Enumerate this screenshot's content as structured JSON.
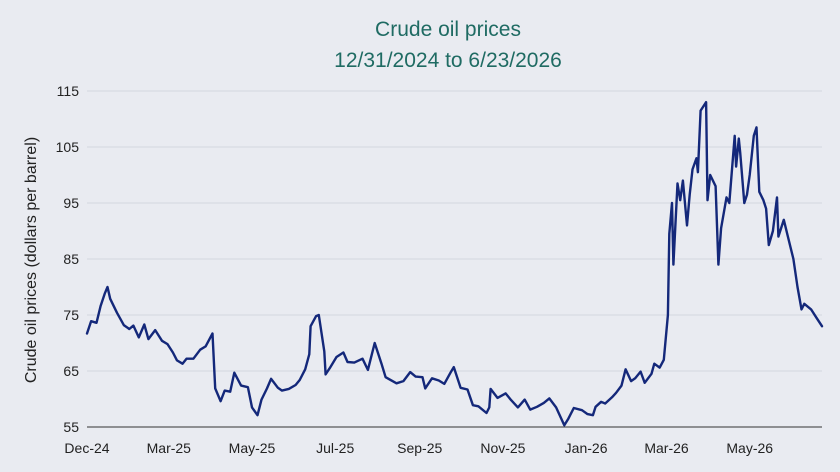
{
  "chart_data": {
    "type": "line",
    "title": "Crude oil prices",
    "subtitle": "12/31/2024 to 6/23/2026",
    "xlabel": "",
    "ylabel": "Crude oil prices (dollars per barrel)",
    "ylim": [
      55,
      115
    ],
    "yticks": [
      55,
      65,
      75,
      85,
      95,
      105,
      115
    ],
    "xlim": [
      "2024-12-31",
      "2026-06-23"
    ],
    "xticks": [
      {
        "label": "Dec-24",
        "date": "2024-12-31"
      },
      {
        "label": "Mar-25",
        "date": "2025-03-01"
      },
      {
        "label": "May-25",
        "date": "2025-05-01"
      },
      {
        "label": "Jul-25",
        "date": "2025-07-01"
      },
      {
        "label": "Sep-25",
        "date": "2025-09-01"
      },
      {
        "label": "Nov-25",
        "date": "2025-11-01"
      },
      {
        "label": "Jan-26",
        "date": "2026-01-01"
      },
      {
        "label": "Mar-26",
        "date": "2026-03-01"
      },
      {
        "label": "May-26",
        "date": "2026-05-01"
      }
    ],
    "grid": {
      "horizontal": true,
      "vertical": false
    },
    "legend": "none",
    "colors": {
      "line": "#14287a",
      "title": "#1f6b63",
      "background": "#e9ebf1"
    },
    "series": [
      {
        "points": [
          [
            "2024-12-31",
            71.7
          ],
          [
            "2025-01-03",
            73.9
          ],
          [
            "2025-01-07",
            73.6
          ],
          [
            "2025-01-10",
            76.6
          ],
          [
            "2025-01-13",
            78.8
          ],
          [
            "2025-01-15",
            80.0
          ],
          [
            "2025-01-17",
            77.9
          ],
          [
            "2025-01-22",
            75.4
          ],
          [
            "2025-01-27",
            73.2
          ],
          [
            "2025-01-31",
            72.5
          ],
          [
            "2025-02-03",
            73.1
          ],
          [
            "2025-02-07",
            71.0
          ],
          [
            "2025-02-11",
            73.3
          ],
          [
            "2025-02-14",
            70.7
          ],
          [
            "2025-02-19",
            72.3
          ],
          [
            "2025-02-24",
            70.4
          ],
          [
            "2025-02-28",
            69.8
          ],
          [
            "2025-03-04",
            68.3
          ],
          [
            "2025-03-07",
            66.9
          ],
          [
            "2025-03-11",
            66.3
          ],
          [
            "2025-03-14",
            67.2
          ],
          [
            "2025-03-19",
            67.2
          ],
          [
            "2025-03-24",
            68.8
          ],
          [
            "2025-03-28",
            69.4
          ],
          [
            "2025-04-02",
            71.7
          ],
          [
            "2025-04-04",
            61.9
          ],
          [
            "2025-04-08",
            59.6
          ],
          [
            "2025-04-11",
            61.5
          ],
          [
            "2025-04-15",
            61.3
          ],
          [
            "2025-04-18",
            64.7
          ],
          [
            "2025-04-23",
            62.4
          ],
          [
            "2025-04-28",
            62.1
          ],
          [
            "2025-05-01",
            58.5
          ],
          [
            "2025-05-05",
            57.1
          ],
          [
            "2025-05-08",
            59.9
          ],
          [
            "2025-05-12",
            61.9
          ],
          [
            "2025-05-15",
            63.6
          ],
          [
            "2025-05-20",
            62.0
          ],
          [
            "2025-05-23",
            61.5
          ],
          [
            "2025-05-28",
            61.8
          ],
          [
            "2025-06-02",
            62.5
          ],
          [
            "2025-06-05",
            63.4
          ],
          [
            "2025-06-09",
            65.3
          ],
          [
            "2025-06-12",
            68.0
          ],
          [
            "2025-06-13",
            73.0
          ],
          [
            "2025-06-17",
            74.8
          ],
          [
            "2025-06-19",
            75.0
          ],
          [
            "2025-06-23",
            68.5
          ],
          [
            "2025-06-24",
            64.4
          ],
          [
            "2025-06-27",
            65.5
          ],
          [
            "2025-07-02",
            67.5
          ],
          [
            "2025-07-07",
            68.3
          ],
          [
            "2025-07-10",
            66.6
          ],
          [
            "2025-07-15",
            66.5
          ],
          [
            "2025-07-21",
            67.2
          ],
          [
            "2025-07-25",
            65.2
          ],
          [
            "2025-07-30",
            70.0
          ],
          [
            "2025-08-04",
            66.3
          ],
          [
            "2025-08-07",
            63.9
          ],
          [
            "2025-08-12",
            63.2
          ],
          [
            "2025-08-15",
            62.8
          ],
          [
            "2025-08-20",
            63.2
          ],
          [
            "2025-08-25",
            64.8
          ],
          [
            "2025-08-29",
            64.0
          ],
          [
            "2025-09-03",
            63.9
          ],
          [
            "2025-09-05",
            61.9
          ],
          [
            "2025-09-10",
            63.7
          ],
          [
            "2025-09-15",
            63.3
          ],
          [
            "2025-09-19",
            62.7
          ],
          [
            "2025-09-24",
            64.9
          ],
          [
            "2025-09-26",
            65.7
          ],
          [
            "2025-10-01",
            62.0
          ],
          [
            "2025-10-06",
            61.7
          ],
          [
            "2025-10-10",
            58.9
          ],
          [
            "2025-10-14",
            58.7
          ],
          [
            "2025-10-20",
            57.5
          ],
          [
            "2025-10-22",
            58.5
          ],
          [
            "2025-10-23",
            61.8
          ],
          [
            "2025-10-28",
            60.2
          ],
          [
            "2025-11-03",
            61.0
          ],
          [
            "2025-11-07",
            59.8
          ],
          [
            "2025-11-12",
            58.5
          ],
          [
            "2025-11-17",
            59.9
          ],
          [
            "2025-11-21",
            58.1
          ],
          [
            "2025-11-26",
            58.6
          ],
          [
            "2025-12-01",
            59.3
          ],
          [
            "2025-12-05",
            60.1
          ],
          [
            "2025-12-10",
            58.5
          ],
          [
            "2025-12-16",
            55.3
          ],
          [
            "2025-12-19",
            56.5
          ],
          [
            "2025-12-23",
            58.4
          ],
          [
            "2025-12-29",
            58.0
          ],
          [
            "2026-01-02",
            57.3
          ],
          [
            "2026-01-06",
            57.1
          ],
          [
            "2026-01-08",
            58.6
          ],
          [
            "2026-01-12",
            59.5
          ],
          [
            "2026-01-15",
            59.2
          ],
          [
            "2026-01-20",
            60.3
          ],
          [
            "2026-01-23",
            61.1
          ],
          [
            "2026-01-27",
            62.4
          ],
          [
            "2026-01-30",
            65.3
          ],
          [
            "2026-02-03",
            63.2
          ],
          [
            "2026-02-06",
            63.7
          ],
          [
            "2026-02-10",
            64.9
          ],
          [
            "2026-02-13",
            62.9
          ],
          [
            "2026-02-18",
            64.5
          ],
          [
            "2026-02-20",
            66.3
          ],
          [
            "2026-02-24",
            65.6
          ],
          [
            "2026-02-27",
            67.0
          ],
          [
            "2026-03-02",
            75.0
          ],
          [
            "2026-03-03",
            89.5
          ],
          [
            "2026-03-05",
            95.0
          ],
          [
            "2026-03-06",
            84.0
          ],
          [
            "2026-03-09",
            98.5
          ],
          [
            "2026-03-11",
            95.5
          ],
          [
            "2026-03-13",
            99.0
          ],
          [
            "2026-03-16",
            91.0
          ],
          [
            "2026-03-18",
            96.5
          ],
          [
            "2026-03-20",
            101.0
          ],
          [
            "2026-03-23",
            103.0
          ],
          [
            "2026-03-24",
            100.5
          ],
          [
            "2026-03-26",
            111.5
          ],
          [
            "2026-03-30",
            113.0
          ],
          [
            "2026-03-31",
            95.5
          ],
          [
            "2026-04-02",
            100.0
          ],
          [
            "2026-04-06",
            98.0
          ],
          [
            "2026-04-08",
            84.0
          ],
          [
            "2026-04-10",
            90.5
          ],
          [
            "2026-04-14",
            96.0
          ],
          [
            "2026-04-16",
            95.0
          ],
          [
            "2026-04-20",
            107.0
          ],
          [
            "2026-04-21",
            101.5
          ],
          [
            "2026-04-23",
            106.5
          ],
          [
            "2026-04-24",
            104.0
          ],
          [
            "2026-04-27",
            95.0
          ],
          [
            "2026-04-29",
            96.5
          ],
          [
            "2026-05-01",
            100.0
          ],
          [
            "2026-05-04",
            107.0
          ],
          [
            "2026-05-06",
            108.5
          ],
          [
            "2026-05-08",
            97.0
          ],
          [
            "2026-05-11",
            95.5
          ],
          [
            "2026-05-13",
            94.0
          ],
          [
            "2026-05-15",
            87.5
          ],
          [
            "2026-05-18",
            90.0
          ],
          [
            "2026-05-21",
            96.0
          ],
          [
            "2026-05-22",
            89.0
          ],
          [
            "2026-05-26",
            92.0
          ],
          [
            "2026-05-29",
            89.0
          ],
          [
            "2026-06-02",
            85.0
          ],
          [
            "2026-06-05",
            80.0
          ],
          [
            "2026-06-08",
            76.0
          ],
          [
            "2026-06-10",
            77.0
          ],
          [
            "2026-06-15",
            76.0
          ],
          [
            "2026-06-19",
            74.5
          ],
          [
            "2026-06-23",
            73.0
          ]
        ]
      }
    ]
  }
}
